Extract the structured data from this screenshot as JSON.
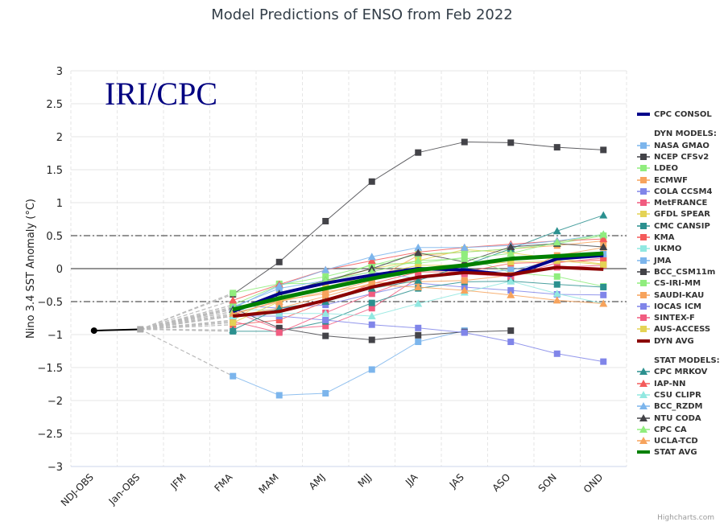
{
  "chart_data": {
    "type": "line",
    "title": "Model Predictions of ENSO from Feb 2022",
    "watermark": "IRI/CPC",
    "xlabel": "",
    "ylabel": "Nino 3.4 SST Anomaly (°C)",
    "ylim": [
      -3,
      3
    ],
    "yticks": [
      3,
      2.5,
      2,
      1.5,
      1,
      0.5,
      0,
      -0.5,
      -1,
      -1.5,
      -2,
      -2.5,
      -3
    ],
    "ytick_labels": [
      "3",
      "2.5",
      "2",
      "1.5",
      "1",
      "0.5",
      "0",
      "−0.5",
      "−1",
      "−1.5",
      "−2",
      "−2.5",
      "−3"
    ],
    "categories": [
      "NDJ-OBS",
      "Jan-OBS",
      "JFM",
      "FMA",
      "MAM",
      "AMJ",
      "MJJ",
      "JJA",
      "JAS",
      "ASO",
      "SON",
      "OND"
    ],
    "reference_lines": [
      {
        "value": 0.5,
        "style": "dashdot"
      },
      {
        "value": 0,
        "style": "solid"
      },
      {
        "value": -0.5,
        "style": "dashdot"
      }
    ],
    "grid": true,
    "legend_position": "right",
    "observed": {
      "name": "OBS",
      "values": [
        -0.94,
        -0.92,
        null,
        null,
        null,
        null,
        null,
        null,
        null,
        null,
        null,
        null
      ],
      "color": "#000000"
    },
    "legend_groups": {
      "dyn": "DYN MODELS:",
      "stat": "STAT MODELS:"
    },
    "series": [
      {
        "name": "CPC CONSOL",
        "group": "consol",
        "color": "#00008b",
        "marker": "line",
        "width": 4,
        "values": [
          null,
          null,
          null,
          -0.65,
          -0.38,
          -0.22,
          -0.1,
          0.0,
          -0.02,
          -0.1,
          0.15,
          0.2
        ]
      },
      {
        "name": "NASA GMAO",
        "group": "dyn",
        "color": "#7cb5ec",
        "marker": "square",
        "values": [
          null,
          null,
          null,
          -1.63,
          -1.92,
          -1.89,
          -1.53,
          -1.11,
          -0.94,
          null,
          null,
          null
        ]
      },
      {
        "name": "NCEP CFSv2",
        "group": "dyn",
        "color": "#434348",
        "marker": "square",
        "values": [
          null,
          null,
          null,
          -0.39,
          0.1,
          0.72,
          1.32,
          1.76,
          1.92,
          1.91,
          1.84,
          1.8
        ]
      },
      {
        "name": "LDEO",
        "group": "dyn",
        "color": "#90ed7d",
        "marker": "square",
        "values": [
          null,
          null,
          null,
          -0.37,
          -0.23,
          -0.22,
          0.07,
          0.08,
          0.17,
          -0.06,
          -0.12,
          -0.27
        ]
      },
      {
        "name": "ECMWF",
        "group": "dyn",
        "color": "#f7a35c",
        "marker": "square",
        "values": [
          null,
          null,
          null,
          -0.7,
          -0.48,
          -0.38,
          -0.18,
          0.2,
          0.25,
          0.3,
          0.35,
          0.42
        ]
      },
      {
        "name": "COLA CCSM4",
        "group": "dyn",
        "color": "#8085e9",
        "marker": "square",
        "values": [
          null,
          null,
          null,
          -0.55,
          -0.6,
          -0.55,
          -0.38,
          -0.22,
          -0.28,
          -0.33,
          -0.39,
          -0.4
        ]
      },
      {
        "name": "MetFRANCE",
        "group": "dyn",
        "color": "#f15c80",
        "marker": "square",
        "values": [
          null,
          null,
          null,
          -0.65,
          -0.92,
          -0.87,
          -0.6,
          -0.14,
          -0.06,
          -0.12,
          0.09,
          0.16
        ]
      },
      {
        "name": "GFDL SPEAR",
        "group": "dyn",
        "color": "#e4d354",
        "marker": "square",
        "values": [
          null,
          null,
          null,
          -0.78,
          -0.38,
          -0.2,
          0.0,
          0.12,
          0.29,
          0.24,
          0.15,
          0.07
        ]
      },
      {
        "name": "CMC CANSIP",
        "group": "dyn",
        "color": "#2b908f",
        "marker": "square",
        "values": [
          null,
          null,
          null,
          -0.95,
          -0.95,
          -0.8,
          -0.52,
          -0.3,
          -0.2,
          -0.19,
          -0.24,
          -0.28
        ]
      },
      {
        "name": "KMA",
        "group": "dyn",
        "color": "#f45b5b",
        "marker": "square",
        "values": [
          null,
          null,
          null,
          -0.85,
          -0.78,
          -0.5,
          -0.23,
          -0.05,
          -0.05,
          0.08,
          0.1,
          0.13
        ]
      },
      {
        "name": "UKMO",
        "group": "dyn",
        "color": "#91e8e1",
        "marker": "square",
        "values": [
          null,
          null,
          null,
          -0.62,
          -0.63,
          null,
          null,
          null,
          null,
          null,
          null,
          null
        ]
      },
      {
        "name": "JMA",
        "group": "dyn",
        "color": "#7cb5ec",
        "marker": "square",
        "values": [
          null,
          null,
          null,
          -0.58,
          -0.3,
          -0.18,
          -0.05,
          -0.15,
          -0.08,
          -0.02,
          0.12,
          0.22
        ]
      },
      {
        "name": "BCC_CSM11m",
        "group": "dyn",
        "color": "#434348",
        "marker": "square",
        "values": [
          null,
          null,
          null,
          -0.6,
          -0.9,
          -1.02,
          -1.08,
          -1.01,
          -0.96,
          -0.94,
          null,
          null
        ]
      },
      {
        "name": "CS-IRI-MM",
        "group": "dyn",
        "color": "#90ed7d",
        "marker": "square",
        "values": [
          null,
          null,
          null,
          -0.55,
          -0.25,
          -0.12,
          0.05,
          0.22,
          0.25,
          0.3,
          0.38,
          0.5
        ]
      },
      {
        "name": "SAUDI-KAU",
        "group": "dyn",
        "color": "#f7a35c",
        "marker": "square",
        "values": [
          null,
          null,
          null,
          -0.72,
          -0.6,
          -0.42,
          -0.22,
          -0.2,
          -0.18,
          -0.1,
          0.2,
          0.32
        ]
      },
      {
        "name": "IOCAS ICM",
        "group": "dyn",
        "color": "#8085e9",
        "marker": "square",
        "values": [
          null,
          null,
          null,
          -0.72,
          -0.72,
          -0.78,
          -0.85,
          -0.9,
          -0.97,
          -1.11,
          -1.29,
          -1.41
        ]
      },
      {
        "name": "SINTEX-F",
        "group": "dyn",
        "color": "#f15c80",
        "marker": "square",
        "values": [
          null,
          null,
          null,
          -0.8,
          -0.97,
          -0.67,
          -0.38,
          -0.12,
          -0.08,
          -0.12,
          0.02,
          0.05
        ]
      },
      {
        "name": "AUS-ACCESS",
        "group": "dyn",
        "color": "#e4d354",
        "marker": "square",
        "values": [
          null,
          null,
          null,
          -0.82,
          -0.5,
          -0.28,
          -0.1,
          0.05,
          0.05,
          0.1,
          0.12,
          0.06
        ]
      },
      {
        "name": "DYN AVG",
        "group": "dyn_avg",
        "color": "#8b0000",
        "marker": "line",
        "width": 4,
        "values": [
          null,
          null,
          null,
          -0.72,
          -0.65,
          -0.48,
          -0.28,
          -0.13,
          -0.06,
          -0.09,
          0.02,
          -0.01
        ]
      },
      {
        "name": "CPC MRKOV",
        "group": "stat",
        "color": "#2b908f",
        "marker": "triangle",
        "values": [
          null,
          null,
          null,
          -0.93,
          -0.6,
          -0.5,
          -0.3,
          -0.18,
          0.05,
          0.3,
          0.57,
          0.81
        ]
      },
      {
        "name": "IAP-NN",
        "group": "stat",
        "color": "#f45b5b",
        "marker": "triangle",
        "values": [
          null,
          null,
          null,
          -0.48,
          -0.24,
          -0.02,
          0.12,
          0.25,
          0.32,
          0.37,
          0.42,
          0.45
        ]
      },
      {
        "name": "CSU CLIPR",
        "group": "stat",
        "color": "#91e8e1",
        "marker": "triangle",
        "values": [
          null,
          null,
          null,
          -0.72,
          -0.68,
          -0.68,
          -0.72,
          -0.53,
          -0.36,
          -0.19,
          -0.38,
          -0.53
        ]
      },
      {
        "name": "BCC_RZDM",
        "group": "stat",
        "color": "#7cb5ec",
        "marker": "triangle",
        "values": [
          null,
          null,
          null,
          -0.6,
          -0.26,
          -0.02,
          0.18,
          0.32,
          0.32,
          0.35,
          0.42,
          0.52
        ]
      },
      {
        "name": "NTU CODA",
        "group": "stat",
        "color": "#434348",
        "marker": "triangle",
        "values": [
          null,
          null,
          null,
          -0.62,
          -0.38,
          -0.18,
          0.0,
          0.24,
          0.1,
          0.33,
          0.38,
          0.33
        ]
      },
      {
        "name": "CPC CA",
        "group": "stat",
        "color": "#90ed7d",
        "marker": "triangle",
        "values": [
          null,
          null,
          null,
          -0.65,
          -0.42,
          -0.18,
          -0.05,
          0.12,
          0.15,
          0.23,
          0.4,
          0.52
        ]
      },
      {
        "name": "UCLA-TCD",
        "group": "stat",
        "color": "#f7a35c",
        "marker": "triangle",
        "values": [
          null,
          null,
          null,
          -0.68,
          -0.5,
          -0.35,
          -0.25,
          -0.28,
          -0.33,
          -0.4,
          -0.48,
          -0.53
        ]
      },
      {
        "name": "STAT AVG",
        "group": "stat_avg",
        "color": "#008000",
        "marker": "line",
        "width": 5,
        "values": [
          null,
          null,
          null,
          -0.62,
          -0.45,
          -0.3,
          -0.15,
          -0.02,
          0.05,
          0.15,
          0.19,
          0.23
        ]
      }
    ]
  },
  "footer": {
    "credit": "Highcharts.com"
  }
}
